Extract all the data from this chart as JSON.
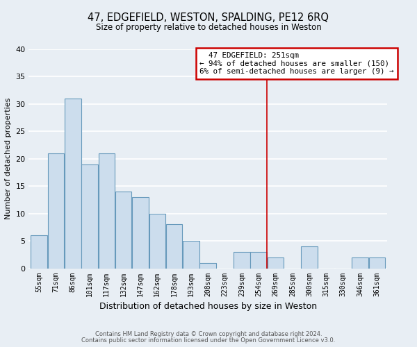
{
  "title": "47, EDGEFIELD, WESTON, SPALDING, PE12 6RQ",
  "subtitle": "Size of property relative to detached houses in Weston",
  "xlabel": "Distribution of detached houses by size in Weston",
  "ylabel": "Number of detached properties",
  "bar_labels": [
    "55sqm",
    "71sqm",
    "86sqm",
    "101sqm",
    "117sqm",
    "132sqm",
    "147sqm",
    "162sqm",
    "178sqm",
    "193sqm",
    "208sqm",
    "223sqm",
    "239sqm",
    "254sqm",
    "269sqm",
    "285sqm",
    "300sqm",
    "315sqm",
    "330sqm",
    "346sqm",
    "361sqm"
  ],
  "bar_values": [
    6,
    21,
    31,
    19,
    21,
    14,
    13,
    10,
    8,
    5,
    1,
    0,
    3,
    3,
    2,
    0,
    4,
    0,
    0,
    2,
    2
  ],
  "bar_color": "#ccdded",
  "bar_edge_color": "#6699bb",
  "vline_color": "#cc0000",
  "annotation_title": "47 EDGEFIELD: 251sqm",
  "annotation_line1": "← 94% of detached houses are smaller (150)",
  "annotation_line2": "6% of semi-detached houses are larger (9) →",
  "annotation_box_facecolor": "white",
  "annotation_box_edgecolor": "#cc0000",
  "ylim": [
    0,
    40
  ],
  "yticks": [
    0,
    5,
    10,
    15,
    20,
    25,
    30,
    35,
    40
  ],
  "footer1": "Contains HM Land Registry data © Crown copyright and database right 2024.",
  "footer2": "Contains public sector information licensed under the Open Government Licence v3.0.",
  "bg_color": "#e8eef4",
  "plot_bg_color": "#e8eef4",
  "grid_color": "#ffffff",
  "title_fontsize": 10.5,
  "subtitle_fontsize": 8.5,
  "xlabel_fontsize": 9,
  "ylabel_fontsize": 8,
  "tick_fontsize": 7,
  "footer_fontsize": 6
}
